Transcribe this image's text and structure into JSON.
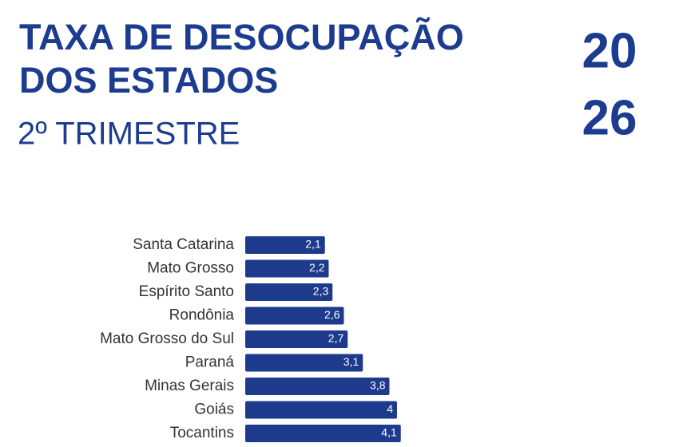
{
  "chart_data": {
    "type": "barh",
    "title": [
      "TAXA DE DESOCUPAÇÃO",
      "DOS ESTADOS"
    ],
    "subtitle": "2º TRIMESTRE",
    "year": [
      "20",
      "26"
    ],
    "categories": [
      "Santa Catarina",
      "Mato Grosso",
      "Espírito Santo",
      "Rondônia",
      "Mato Grosso do Sul",
      "Paraná",
      "Minas Gerais",
      "Goiás",
      "Tocantins"
    ],
    "values": [
      2.1,
      2.2,
      2.3,
      2.6,
      2.7,
      3.1,
      3.8,
      4,
      4.1
    ],
    "value_labels": [
      "2,1",
      "2,2",
      "2,3",
      "2,6",
      "2,7",
      "3,1",
      "3,8",
      "4",
      "4,1"
    ],
    "color": "#1d3a8c"
  }
}
